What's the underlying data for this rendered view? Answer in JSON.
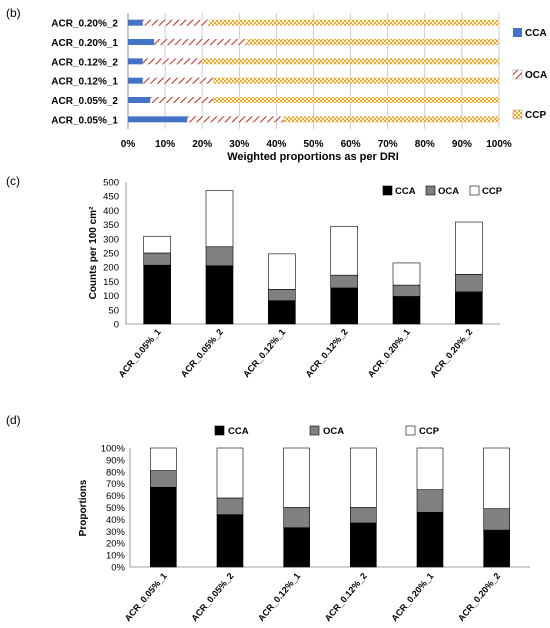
{
  "panels": {
    "b": "(b)",
    "c": "(c)",
    "d": "(d)"
  },
  "colors": {
    "cca_b": "#4472c4",
    "oca_b": "#c0392b",
    "ccp_b": "#f0a830",
    "black": "#000000",
    "gray": "#808080",
    "white": "#ffffff",
    "grid": "#bfbfbf",
    "axis": "#808080"
  },
  "chart_data": [
    {
      "panel": "(b)",
      "type": "bar",
      "orientation": "horizontal",
      "stacked": true,
      "categories": [
        "ACR_0.05%_1",
        "ACR_0.05%_2",
        "ACR_0.12%_1",
        "ACR_0.12%_2",
        "ACR_0.20%_1",
        "ACR_0.20%_2"
      ],
      "series": [
        {
          "name": "CCA",
          "values": [
            16,
            6,
            4,
            4,
            7,
            4
          ],
          "fill": "solid-blue"
        },
        {
          "name": "OCA",
          "values": [
            26,
            17,
            19,
            16,
            25,
            18
          ],
          "fill": "red-diagonal-hatch"
        },
        {
          "name": "CCP",
          "values": [
            58,
            77,
            77,
            80,
            68,
            78
          ],
          "fill": "orange-checker"
        }
      ],
      "xlabel": "Weighted proportions as per DRI",
      "xticks": [
        "0%",
        "10%",
        "20%",
        "30%",
        "40%",
        "50%",
        "60%",
        "70%",
        "80%",
        "90%",
        "100%"
      ],
      "xlim": [
        0,
        100
      ],
      "grid": true,
      "legend": "right"
    },
    {
      "panel": "(c)",
      "type": "bar",
      "stacked": true,
      "categories": [
        "ACR_0.05%_1",
        "ACR_0.05%_2",
        "ACR_0.12%_1",
        "ACR_0.12%_2",
        "ACR_0.20%_1",
        "ACR_0.20%_2"
      ],
      "series": [
        {
          "name": "CCA",
          "values": [
            207,
            205,
            82,
            127,
            97,
            113
          ]
        },
        {
          "name": "OCA",
          "values": [
            43,
            67,
            40,
            45,
            40,
            62
          ]
        },
        {
          "name": "CCP",
          "values": [
            59,
            198,
            125,
            172,
            78,
            184
          ]
        }
      ],
      "ylabel": "Counts per 100 cm²",
      "yticks": [
        "0",
        "50",
        "100",
        "150",
        "200",
        "250",
        "300",
        "350",
        "400",
        "450",
        "500"
      ],
      "ylim": [
        0,
        500
      ],
      "legend": "top-right"
    },
    {
      "panel": "(d)",
      "type": "bar",
      "stacked": true,
      "categories": [
        "ACR_0.05%_1",
        "ACR_0.05%_2",
        "ACR_0.12%_1",
        "ACR_0.12%_2",
        "ACR_0.20%_1",
        "ACR_0.20%_2"
      ],
      "series": [
        {
          "name": "CCA",
          "values": [
            67,
            44,
            33,
            37,
            46,
            31
          ]
        },
        {
          "name": "OCA",
          "values": [
            14,
            14,
            17,
            13,
            19,
            18
          ]
        },
        {
          "name": "CCP",
          "values": [
            19,
            42,
            50,
            50,
            35,
            51
          ]
        }
      ],
      "ylabel": "Proportions",
      "yticks": [
        "0%",
        "10%",
        "20%",
        "30%",
        "40%",
        "50%",
        "60%",
        "70%",
        "80%",
        "90%",
        "100%"
      ],
      "ylim": [
        0,
        100
      ],
      "legend": "top"
    }
  ]
}
